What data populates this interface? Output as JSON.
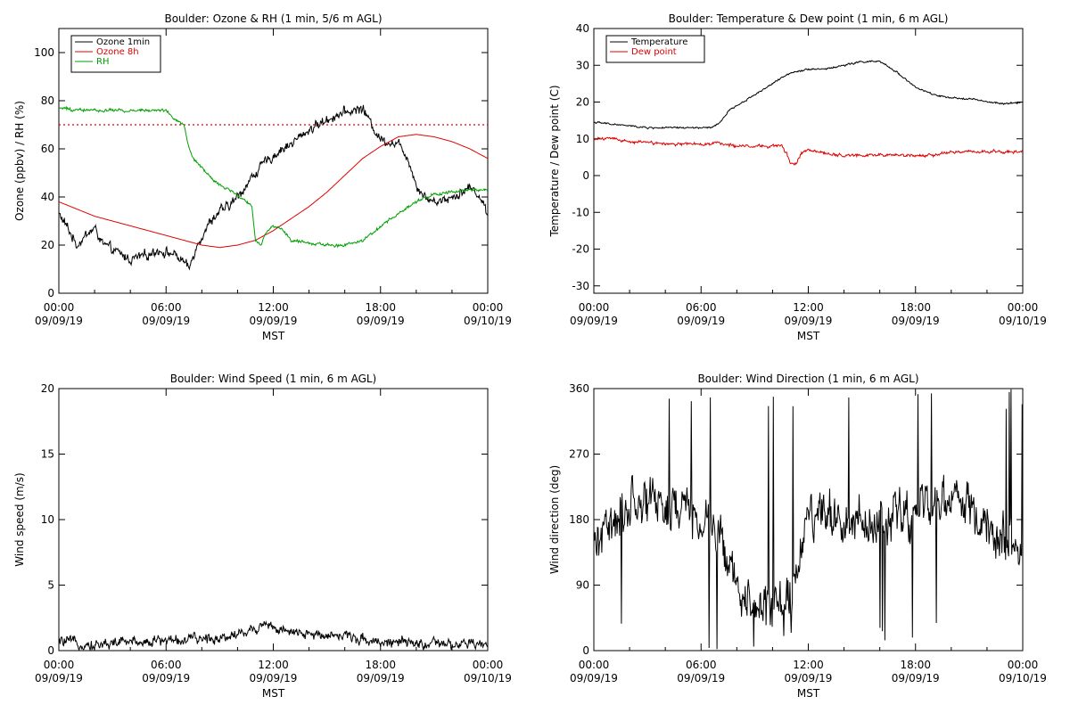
{
  "chart_data": [
    {
      "type": "line",
      "title": "Boulder: Ozone & RH (1 min, 5/6 m AGL)",
      "xlabel": "MST",
      "ylabel": "Ozone (ppbv) / RH (%)",
      "xlim": [
        0,
        24
      ],
      "ylim": [
        0,
        110
      ],
      "yticks": [
        0,
        20,
        40,
        60,
        80,
        100
      ],
      "xticks": [
        {
          "t": 0,
          "time": "00:00",
          "date": "09/09/19"
        },
        {
          "t": 6,
          "time": "06:00",
          "date": "09/09/19"
        },
        {
          "t": 12,
          "time": "12:00",
          "date": "09/09/19"
        },
        {
          "t": 18,
          "time": "18:00",
          "date": "09/09/19"
        },
        {
          "t": 24,
          "time": "00:00",
          "date": "09/10/19"
        }
      ],
      "reference_line": {
        "y": 70,
        "color": "#e00000",
        "style": "dotted"
      },
      "series": [
        {
          "name": "Ozone 1min",
          "color": "#000000",
          "noise": 2.5,
          "x": [
            0,
            0.5,
            1,
            1.5,
            2,
            2.5,
            3,
            3.5,
            4,
            4.5,
            5,
            5.5,
            6,
            6.5,
            7,
            7.3,
            7.6,
            8,
            8.5,
            9,
            9.5,
            10,
            10.5,
            11,
            11.5,
            12,
            12.5,
            13,
            13.5,
            14,
            14.5,
            15,
            15.5,
            16,
            16.5,
            17,
            17.5,
            18,
            18.5,
            19,
            19.5,
            20,
            20.5,
            21,
            21.5,
            22,
            22.5,
            23,
            23.5,
            24
          ],
          "y": [
            33,
            27,
            20,
            24,
            27,
            20,
            18,
            16,
            14,
            15,
            16,
            18,
            17,
            16,
            13,
            10,
            18,
            24,
            30,
            34,
            36,
            40,
            45,
            50,
            54,
            57,
            60,
            62,
            65,
            68,
            70,
            72,
            74,
            75,
            76,
            77,
            70,
            64,
            63,
            62,
            57,
            45,
            40,
            38,
            39,
            40,
            42,
            44,
            41,
            33
          ]
        },
        {
          "name": "Ozone 8h",
          "color": "#e00000",
          "noise": 0,
          "x": [
            0,
            1,
            2,
            3,
            4,
            5,
            6,
            7,
            8,
            9,
            10,
            11,
            12,
            13,
            14,
            15,
            16,
            17,
            18,
            19,
            20,
            21,
            22,
            23,
            24
          ],
          "y": [
            38,
            35,
            32,
            30,
            28,
            26,
            24,
            22,
            20,
            19,
            20,
            22,
            26,
            31,
            36,
            42,
            49,
            56,
            61,
            65,
            66,
            65,
            63,
            60,
            56
          ]
        },
        {
          "name": "RH",
          "color": "#00a000",
          "noise": 0.8,
          "x": [
            0,
            1,
            2,
            3,
            4,
            5,
            6,
            6.5,
            7,
            7.3,
            7.6,
            8,
            8.5,
            9,
            9.5,
            10,
            10.5,
            10.8,
            11,
            11.3,
            11.6,
            12,
            12.5,
            13,
            14,
            15,
            16,
            17,
            18,
            19,
            20,
            21,
            22,
            23,
            24
          ],
          "y": [
            77,
            76,
            76,
            76,
            76,
            76,
            76,
            72,
            70,
            60,
            55,
            52,
            48,
            45,
            43,
            41,
            38,
            36,
            22,
            20,
            25,
            28,
            27,
            22,
            21,
            20,
            20,
            22,
            28,
            33,
            38,
            41,
            42,
            43,
            43
          ]
        }
      ]
    },
    {
      "type": "line",
      "title": "Boulder: Temperature & Dew point (1 min, 6 m AGL)",
      "xlabel": "MST",
      "ylabel": "Temperature / Dew point (C)",
      "xlim": [
        0,
        24
      ],
      "ylim": [
        -32,
        40
      ],
      "yticks": [
        -30,
        -20,
        -10,
        0,
        10,
        20,
        30,
        40
      ],
      "xticks": [
        {
          "t": 0,
          "time": "00:00",
          "date": "09/09/19"
        },
        {
          "t": 6,
          "time": "06:00",
          "date": "09/09/19"
        },
        {
          "t": 12,
          "time": "12:00",
          "date": "09/09/19"
        },
        {
          "t": 18,
          "time": "18:00",
          "date": "09/09/19"
        },
        {
          "t": 24,
          "time": "00:00",
          "date": "09/10/19"
        }
      ],
      "series": [
        {
          "name": "Temperature",
          "color": "#000000",
          "noise": 0.3,
          "x": [
            0,
            1,
            2,
            3,
            4,
            5,
            6,
            6.5,
            7,
            7.3,
            7.6,
            8,
            9,
            10,
            11,
            12,
            13,
            14,
            15,
            16,
            17,
            18,
            19,
            20,
            21,
            22,
            23,
            24
          ],
          "y": [
            14.5,
            14,
            13.5,
            13,
            13,
            13,
            13,
            13,
            14,
            16,
            18,
            19,
            22,
            25,
            28,
            29,
            29,
            30,
            31,
            31,
            28,
            24,
            22,
            21,
            21,
            20,
            19.5,
            20
          ]
        },
        {
          "name": "Dew point",
          "color": "#e00000",
          "noise": 0.5,
          "x": [
            0,
            1,
            2,
            3,
            4,
            5,
            6,
            7,
            8,
            9,
            10,
            10.5,
            10.8,
            11,
            11.3,
            11.6,
            12,
            13,
            14,
            15,
            16,
            17,
            18,
            19,
            20,
            21,
            22,
            23,
            24
          ],
          "y": [
            10,
            10,
            9,
            9,
            8.5,
            8.5,
            8.5,
            9,
            8,
            8,
            8,
            8,
            6,
            3,
            3,
            6,
            7,
            6,
            5.5,
            5.5,
            5.5,
            5.5,
            5.5,
            5.5,
            6.5,
            6.5,
            6.5,
            6.5,
            6.5
          ]
        }
      ]
    },
    {
      "type": "line",
      "title": "Boulder: Wind Speed (1 min, 6 m AGL)",
      "xlabel": "MST",
      "ylabel": "Wind speed (m/s)",
      "xlim": [
        0,
        24
      ],
      "ylim": [
        0,
        20
      ],
      "yticks": [
        0,
        5,
        10,
        15,
        20
      ],
      "xticks": [
        {
          "t": 0,
          "time": "00:00",
          "date": "09/09/19"
        },
        {
          "t": 6,
          "time": "06:00",
          "date": "09/09/19"
        },
        {
          "t": 12,
          "time": "12:00",
          "date": "09/09/19"
        },
        {
          "t": 18,
          "time": "18:00",
          "date": "09/09/19"
        },
        {
          "t": 24,
          "time": "00:00",
          "date": "09/10/19"
        }
      ],
      "series": [
        {
          "name": "",
          "color": "#000000",
          "noise": 0.5,
          "x": [
            0,
            1,
            2,
            3,
            4,
            5,
            6,
            7,
            8,
            9,
            10,
            11,
            11.5,
            12,
            12.5,
            13,
            14,
            15,
            16,
            17,
            18,
            19,
            20,
            21,
            22,
            23,
            24
          ],
          "y": [
            0.7,
            0.6,
            0.4,
            0.6,
            0.7,
            0.7,
            0.8,
            0.8,
            0.9,
            1.0,
            1.3,
            1.6,
            2.2,
            1.8,
            1.5,
            1.3,
            1.2,
            1.3,
            1.1,
            0.9,
            0.7,
            0.6,
            0.5,
            0.5,
            0.4,
            0.5,
            0.4
          ]
        }
      ]
    },
    {
      "type": "line",
      "title": "Boulder: Wind Direction (1 min, 6 m AGL)",
      "xlabel": "MST",
      "ylabel": "Wind direction (deg)",
      "xlim": [
        0,
        24
      ],
      "ylim": [
        0,
        360
      ],
      "yticks": [
        0,
        90,
        180,
        270,
        360
      ],
      "xticks": [
        {
          "t": 0,
          "time": "00:00",
          "date": "09/09/19"
        },
        {
          "t": 6,
          "time": "06:00",
          "date": "09/09/19"
        },
        {
          "t": 12,
          "time": "12:00",
          "date": "09/09/19"
        },
        {
          "t": 18,
          "time": "18:00",
          "date": "09/09/19"
        },
        {
          "t": 24,
          "time": "00:00",
          "date": "09/10/19"
        }
      ],
      "series": [
        {
          "name": "",
          "color": "#000000",
          "noise": 40,
          "x": [
            0,
            1,
            2,
            3,
            4,
            5,
            6,
            7,
            7.5,
            8,
            9,
            10,
            11,
            12,
            13,
            14,
            15,
            16,
            17,
            18,
            19,
            20,
            21,
            22,
            23,
            24
          ],
          "y": [
            150,
            170,
            200,
            210,
            200,
            190,
            180,
            170,
            120,
            80,
            60,
            50,
            70,
            190,
            180,
            185,
            175,
            180,
            190,
            185,
            200,
            210,
            200,
            160,
            150,
            140
          ]
        }
      ]
    }
  ]
}
